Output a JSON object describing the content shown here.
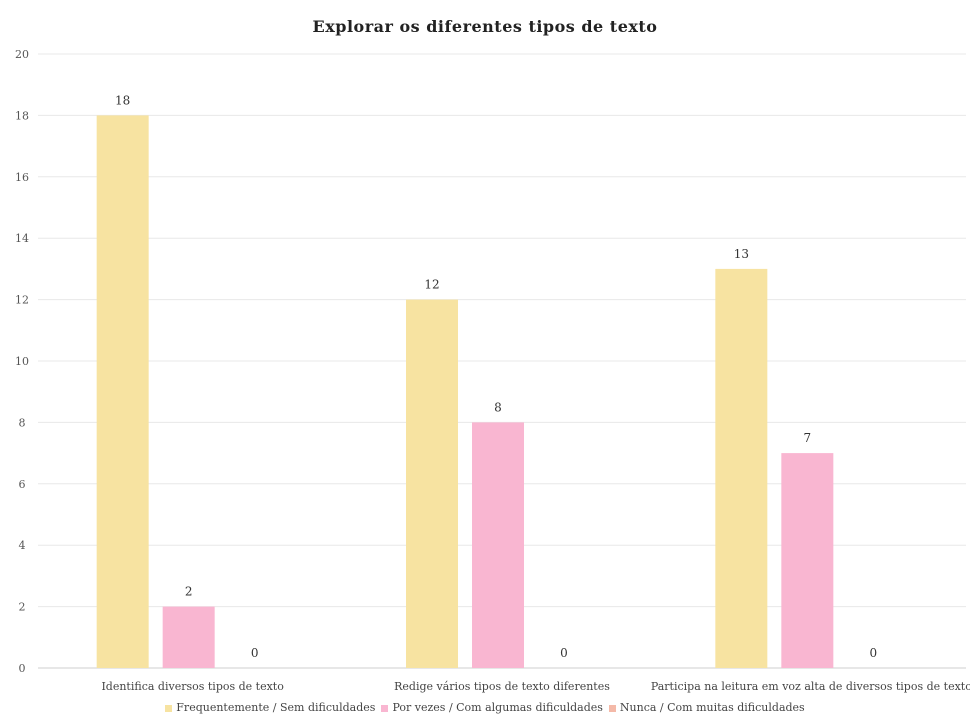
{
  "chart_data": {
    "type": "bar",
    "title": "Explorar os diferentes tipos de texto",
    "categories": [
      "Identifica diversos tipos de texto",
      "Redige vários tipos de texto diferentes",
      "Participa na leitura em voz alta de diversos tipos de texto"
    ],
    "series": [
      {
        "name": "Frequentemente / Sem dificuldades",
        "values": [
          18,
          12,
          13
        ],
        "color": "#f7e3a1"
      },
      {
        "name": "Por vezes / Com algumas dificuldades",
        "values": [
          2,
          8,
          7
        ],
        "color": "#f9b6d1"
      },
      {
        "name": "Nunca / Com muitas dificuldades",
        "values": [
          0,
          0,
          0
        ],
        "color": "#f4b9a8"
      }
    ],
    "ylim": [
      0,
      20
    ],
    "yticks": [
      0,
      2,
      4,
      6,
      8,
      10,
      12,
      14,
      16,
      18,
      20
    ],
    "grid": true,
    "legend_position": "bottom",
    "data_labels": true
  }
}
